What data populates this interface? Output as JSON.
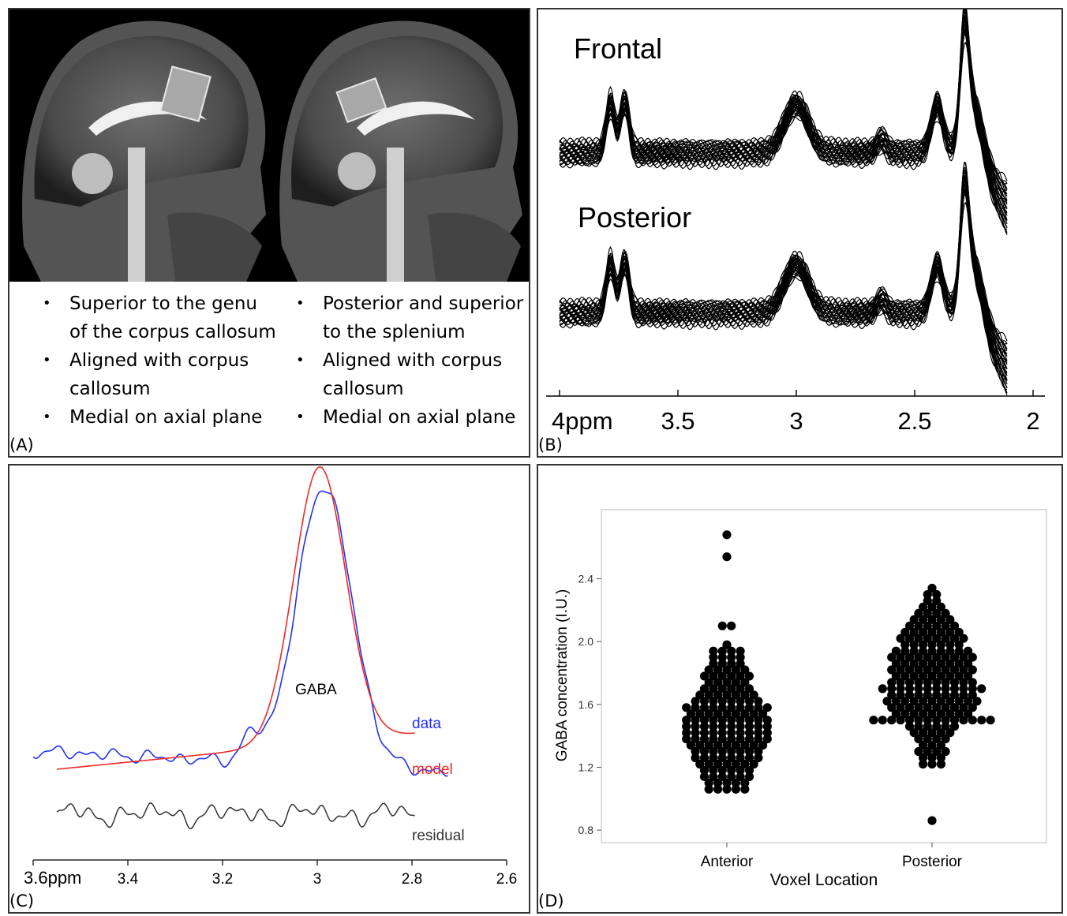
{
  "panel_a": {
    "label": "(A)",
    "left_bullets": [
      "Superior to the genu of the corpus callosum",
      "Aligned with corpus callosum",
      "Medial on axial plane"
    ],
    "right_bullets": [
      "Posterior and superior to the splenium",
      "Aligned with corpus callosum",
      "Medial on axial plane"
    ]
  },
  "panel_b": {
    "label": "(B)",
    "frontal_label": "Frontal",
    "posterior_label": "Posterior"
  },
  "panel_c": {
    "label": "(C)"
  },
  "panel_d": {
    "label": "(D)"
  },
  "colors": {
    "data": "#2233ee",
    "model": "#ee2a2a",
    "residual": "#333333",
    "dots": "#000000"
  },
  "chart_data": [
    {
      "type": "line",
      "panel": "B",
      "title": "",
      "xlabel": "",
      "ylabel": "",
      "xlim": [
        4.0,
        2.0
      ],
      "x_ticks": [
        4,
        3.5,
        3,
        2.5,
        2
      ],
      "x_tick_labels": [
        "4ppm",
        "3.5",
        "3",
        "2.5",
        "2"
      ],
      "series": [
        {
          "name": "Frontal",
          "peaks_ppm": [
            3.78,
            3.72,
            3.0,
            2.64,
            2.4,
            2.29
          ]
        },
        {
          "name": "Posterior",
          "peaks_ppm": [
            3.78,
            3.72,
            3.0,
            2.64,
            2.4,
            2.29
          ]
        }
      ]
    },
    {
      "type": "line",
      "panel": "C",
      "title": "",
      "xlabel": "",
      "ylabel": "",
      "xlim": [
        3.6,
        2.6
      ],
      "x_ticks": [
        3.6,
        3.4,
        3.2,
        3.0,
        2.8,
        2.6
      ],
      "x_tick_labels": [
        "3.6ppm",
        "3.4",
        "3.2",
        "3",
        "2.8",
        "2.6"
      ],
      "peak_label": "GABA",
      "peak_ppm": 3.0,
      "series": [
        {
          "name": "data"
        },
        {
          "name": "model"
        },
        {
          "name": "residual"
        }
      ]
    },
    {
      "type": "scatter",
      "panel": "D",
      "title": "",
      "xlabel": "Voxel Location",
      "ylabel": "GABA concentration (I.U.)",
      "categories": [
        "Anterior",
        "Posterior"
      ],
      "ylim": [
        0.72,
        2.84
      ],
      "y_ticks": [
        0.8,
        1.2,
        1.6,
        2.0,
        2.4
      ],
      "y_tick_labels": [
        "0.8",
        "1.2",
        "1.6",
        "2.0",
        "2.4"
      ],
      "bin_width": 0.04,
      "series": [
        {
          "category": "Anterior",
          "bins": [
            [
              2.68,
              1
            ],
            [
              2.54,
              1
            ],
            [
              2.1,
              2
            ],
            [
              1.98,
              1
            ],
            [
              1.94,
              4
            ],
            [
              1.9,
              4
            ],
            [
              1.86,
              4
            ],
            [
              1.82,
              5
            ],
            [
              1.78,
              6
            ],
            [
              1.74,
              5
            ],
            [
              1.7,
              6
            ],
            [
              1.66,
              7
            ],
            [
              1.62,
              8
            ],
            [
              1.58,
              10
            ],
            [
              1.54,
              9
            ],
            [
              1.5,
              10
            ],
            [
              1.46,
              10
            ],
            [
              1.42,
              10
            ],
            [
              1.38,
              10
            ],
            [
              1.34,
              9
            ],
            [
              1.3,
              8
            ],
            [
              1.26,
              8
            ],
            [
              1.22,
              7
            ],
            [
              1.18,
              6
            ],
            [
              1.14,
              6
            ],
            [
              1.1,
              5
            ],
            [
              1.06,
              5
            ]
          ]
        },
        {
          "category": "Posterior",
          "bins": [
            [
              2.34,
              1
            ],
            [
              2.3,
              2
            ],
            [
              2.26,
              2
            ],
            [
              2.22,
              3
            ],
            [
              2.18,
              4
            ],
            [
              2.14,
              5
            ],
            [
              2.1,
              6
            ],
            [
              2.06,
              7
            ],
            [
              2.02,
              8
            ],
            [
              1.98,
              7
            ],
            [
              1.94,
              9
            ],
            [
              1.9,
              10
            ],
            [
              1.86,
              9
            ],
            [
              1.82,
              10
            ],
            [
              1.78,
              9
            ],
            [
              1.74,
              10
            ],
            [
              1.7,
              12
            ],
            [
              1.66,
              10
            ],
            [
              1.62,
              11
            ],
            [
              1.58,
              10
            ],
            [
              1.54,
              9
            ],
            [
              1.5,
              14
            ],
            [
              1.46,
              6
            ],
            [
              1.42,
              5
            ],
            [
              1.38,
              4
            ],
            [
              1.34,
              3
            ],
            [
              1.3,
              4
            ],
            [
              1.26,
              3
            ],
            [
              1.22,
              3
            ],
            [
              0.86,
              1
            ]
          ]
        }
      ]
    }
  ]
}
